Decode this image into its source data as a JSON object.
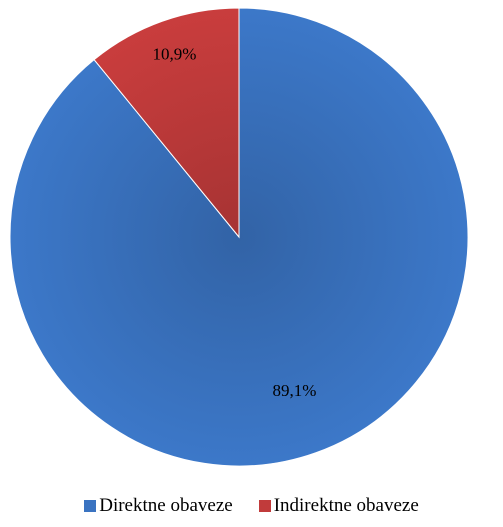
{
  "chart_data": {
    "type": "pie",
    "title": "",
    "start_angle_deg": 0,
    "direction": "clockwise",
    "slices": [
      {
        "label": "Direktne obaveze",
        "value": 89.1,
        "value_label": "89,1%",
        "color": "#3A73C1"
      },
      {
        "label": "Indirektne obaveze",
        "value": 10.9,
        "value_label": "10,9%",
        "color": "#C13B3B"
      }
    ],
    "legend": {
      "position": "bottom",
      "entries": [
        "Direktne obaveze",
        "Indirektne obaveze"
      ]
    }
  }
}
